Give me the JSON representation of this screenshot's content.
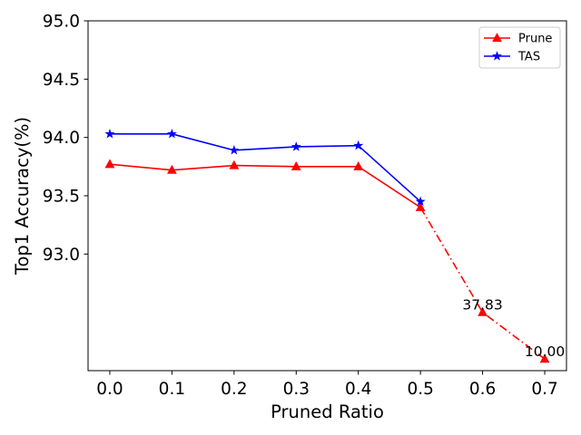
{
  "chart_data": {
    "type": "line",
    "xlabel": "Pruned Ratio",
    "ylabel": "Top1 Accuracy(%)",
    "xlim": [
      -0.035,
      0.735
    ],
    "ylim": [
      92.0,
      95.0
    ],
    "x_ticks": [
      0.0,
      0.1,
      0.2,
      0.3,
      0.4,
      0.5,
      0.6,
      0.7
    ],
    "x_tick_labels": [
      "0.0",
      "0.1",
      "0.2",
      "0.3",
      "0.4",
      "0.5",
      "0.6",
      "0.7"
    ],
    "y_ticks": [
      93.0,
      93.5,
      94.0,
      94.5,
      95.0
    ],
    "y_tick_labels": [
      "93.0",
      "93.5",
      "94.0",
      "94.5",
      "95.0"
    ],
    "legend_position": "top-right",
    "grid": false,
    "series": [
      {
        "name": "Prune",
        "color": "#ff0000",
        "marker": "triangle",
        "x": [
          0.0,
          0.1,
          0.2,
          0.3,
          0.4,
          0.5
        ],
        "y": [
          93.77,
          93.72,
          93.76,
          93.75,
          93.75,
          93.4
        ],
        "extension": {
          "line_style": "dash-dot",
          "x": [
            0.5,
            0.6,
            0.7
          ],
          "y": [
            93.4,
            92.5,
            92.1
          ]
        }
      },
      {
        "name": "TAS",
        "color": "#0000ff",
        "marker": "star",
        "x": [
          0.0,
          0.1,
          0.2,
          0.3,
          0.4,
          0.5
        ],
        "y": [
          94.03,
          94.03,
          93.89,
          93.92,
          93.93,
          93.45
        ]
      }
    ],
    "annotations": [
      {
        "text": "37.83",
        "x": 0.6,
        "y": 92.5
      },
      {
        "text": "10.00",
        "x": 0.7,
        "y": 92.1
      }
    ]
  }
}
